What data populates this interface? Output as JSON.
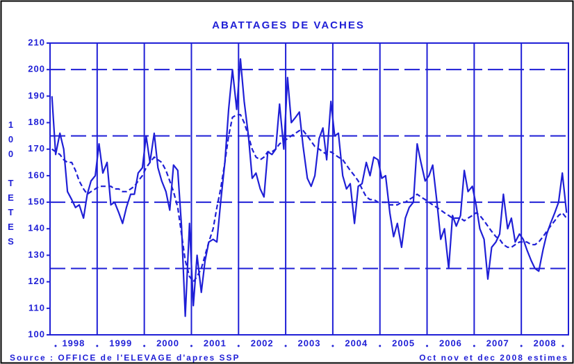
{
  "chart_data": {
    "type": "line",
    "title": "ABATTAGES DE VACHES",
    "y_label": "100 TETES",
    "source": "Source : OFFICE de l'ELEVAGE d'apres SSP",
    "note": "Oct nov et dec 2008 estimes",
    "categories": [
      "1998",
      "1999",
      "2000",
      "2001",
      "2002",
      "2003",
      "2004",
      "2005",
      "2006",
      "2007",
      "2008"
    ],
    "xlim": [
      1998,
      2009
    ],
    "xticks": [
      1999,
      2000,
      2001,
      2002,
      2003,
      2004,
      2005,
      2006,
      2007,
      2008
    ],
    "ylim": [
      100,
      210
    ],
    "yticks": [
      100,
      110,
      120,
      130,
      140,
      150,
      160,
      170,
      180,
      190,
      200,
      210
    ],
    "reference_lines": [
      125,
      150,
      175,
      200
    ],
    "x": [
      1998.04,
      1998.12,
      1998.21,
      1998.29,
      1998.37,
      1998.46,
      1998.54,
      1998.62,
      1998.71,
      1998.79,
      1998.87,
      1998.96,
      1999.04,
      1999.12,
      1999.21,
      1999.29,
      1999.37,
      1999.46,
      1999.54,
      1999.62,
      1999.71,
      1999.79,
      1999.87,
      1999.96,
      2000.04,
      2000.12,
      2000.21,
      2000.29,
      2000.37,
      2000.46,
      2000.54,
      2000.62,
      2000.71,
      2000.79,
      2000.87,
      2000.96,
      2001.04,
      2001.12,
      2001.21,
      2001.29,
      2001.37,
      2001.46,
      2001.54,
      2001.62,
      2001.71,
      2001.79,
      2001.87,
      2001.96,
      2002.04,
      2002.12,
      2002.21,
      2002.29,
      2002.37,
      2002.46,
      2002.54,
      2002.62,
      2002.71,
      2002.79,
      2002.87,
      2002.96,
      2003.04,
      2003.12,
      2003.21,
      2003.29,
      2003.37,
      2003.46,
      2003.54,
      2003.62,
      2003.71,
      2003.79,
      2003.87,
      2003.96,
      2004.04,
      2004.12,
      2004.21,
      2004.29,
      2004.37,
      2004.46,
      2004.54,
      2004.62,
      2004.71,
      2004.79,
      2004.87,
      2004.96,
      2005.04,
      2005.12,
      2005.21,
      2005.29,
      2005.37,
      2005.46,
      2005.54,
      2005.62,
      2005.71,
      2005.79,
      2005.87,
      2005.96,
      2006.04,
      2006.12,
      2006.21,
      2006.29,
      2006.37,
      2006.46,
      2006.54,
      2006.62,
      2006.71,
      2006.79,
      2006.87,
      2006.96,
      2007.04,
      2007.12,
      2007.21,
      2007.29,
      2007.37,
      2007.46,
      2007.54,
      2007.62,
      2007.71,
      2007.79,
      2007.87,
      2007.96,
      2008.04,
      2008.12,
      2008.21,
      2008.29,
      2008.37,
      2008.46,
      2008.54,
      2008.62,
      2008.71,
      2008.79,
      2008.87,
      2008.96
    ],
    "series": [
      {
        "color": "#1f1fd6",
        "dashed": false,
        "values": [
          190,
          168,
          176,
          170,
          154,
          151,
          148,
          149,
          144,
          153,
          158,
          160,
          172,
          161,
          165,
          149,
          150,
          146,
          142,
          148,
          153,
          153,
          161,
          163,
          175,
          165,
          176,
          163,
          158,
          154,
          147,
          164,
          162,
          141,
          107,
          142,
          111,
          130,
          116,
          128,
          135,
          136,
          135,
          150,
          165,
          185,
          200,
          185,
          204,
          188,
          175,
          159,
          161,
          155,
          152,
          169,
          168,
          170,
          187,
          170,
          197,
          180,
          182,
          184,
          171,
          159,
          156,
          160,
          174,
          178,
          166,
          188,
          175,
          176,
          160,
          155,
          157,
          142,
          156,
          157,
          165,
          160,
          167,
          166,
          159,
          160,
          146,
          137,
          142,
          133,
          144,
          148,
          150,
          172,
          165,
          158,
          160,
          164,
          150,
          136,
          140,
          125,
          145,
          141,
          145,
          162,
          154,
          156,
          149,
          140,
          136,
          121,
          133,
          135,
          138,
          153,
          140,
          144,
          135,
          138,
          136,
          132,
          128,
          125,
          124,
          132,
          138,
          142,
          146,
          150,
          161,
          146
        ]
      },
      {
        "color": "#1f1fd6",
        "dashed": true,
        "values": [
          170,
          169,
          168,
          166,
          165,
          165,
          162,
          158,
          155,
          153,
          154,
          155,
          156,
          156,
          156,
          156,
          155,
          155,
          154,
          154,
          155,
          156,
          158,
          160,
          163,
          165,
          167,
          166,
          165,
          162,
          158,
          154,
          148,
          138,
          128,
          122,
          120,
          122,
          125,
          130,
          135,
          140,
          148,
          155,
          165,
          175,
          182,
          183,
          183,
          180,
          175,
          170,
          167,
          166,
          167,
          169,
          169,
          170,
          172,
          173,
          174,
          175,
          176,
          177,
          177,
          175,
          173,
          171,
          170,
          169,
          168,
          169,
          168,
          167,
          166,
          164,
          162,
          160,
          158,
          155,
          152,
          151,
          151,
          150,
          150,
          150,
          149,
          149,
          149,
          150,
          150,
          151,
          152,
          153,
          152,
          151,
          150,
          149,
          148,
          147,
          146,
          145,
          144,
          144,
          144,
          143,
          144,
          145,
          146,
          145,
          143,
          141,
          139,
          137,
          136,
          134,
          133,
          133,
          134,
          135,
          135,
          135,
          134,
          134,
          135,
          137,
          139,
          141,
          143,
          145,
          146,
          144
        ]
      }
    ]
  }
}
